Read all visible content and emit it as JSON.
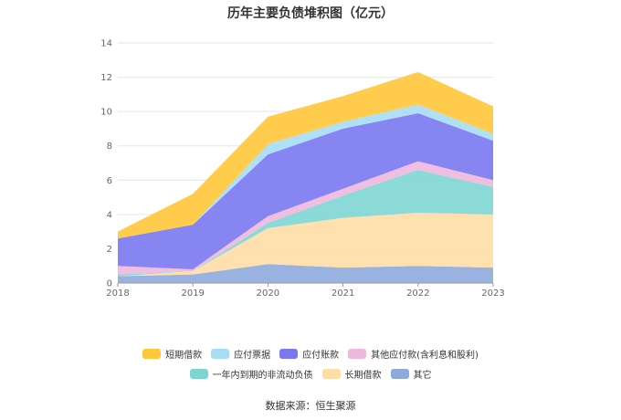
{
  "colors": {
    "short_term_borrowing": "#FFC73A",
    "notes_payable": "#A6DDF5",
    "accounts_payable": "#7A78F0",
    "other_payables": "#EEB7DD",
    "current_portion_noncurrent": "#7ED6D4",
    "long_term_borrowing": "#FFDDA5",
    "other": "#8EAADC",
    "grid": "#E6E6E6",
    "axis_label": "#666666",
    "title": "#333333"
  },
  "footer": {
    "source_label": "数据来源：恒生聚源"
  },
  "chart_data": {
    "type": "area",
    "stacked": true,
    "title": "历年主要负债堆积图（亿元）",
    "xlabel": "",
    "ylabel": "",
    "x": [
      "2018",
      "2019",
      "2020",
      "2021",
      "2022",
      "2023"
    ],
    "ylim": [
      0,
      14
    ],
    "yticks": [
      0,
      2,
      4,
      6,
      8,
      10,
      12,
      14
    ],
    "grid": true,
    "legend_position": "bottom",
    "series": [
      {
        "name": "其它",
        "key": "other",
        "values": [
          0.4,
          0.5,
          1.1,
          0.9,
          1.0,
          0.9
        ]
      },
      {
        "name": "长期借款",
        "key": "long_term_borrowing",
        "values": [
          0.0,
          0.2,
          2.1,
          2.9,
          3.1,
          3.1
        ]
      },
      {
        "name": "一年内到期的非流动负债",
        "key": "current_portion_noncurrent",
        "values": [
          0.1,
          0.0,
          0.3,
          1.3,
          2.5,
          1.6
        ]
      },
      {
        "name": "其他应付款(含利息和股利)",
        "key": "other_payables",
        "values": [
          0.5,
          0.1,
          0.4,
          0.4,
          0.5,
          0.4
        ]
      },
      {
        "name": "应付账款",
        "key": "accounts_payable",
        "values": [
          1.6,
          2.6,
          3.6,
          3.5,
          2.8,
          2.3
        ]
      },
      {
        "name": "应付票据",
        "key": "notes_payable",
        "values": [
          0.0,
          0.0,
          0.6,
          0.4,
          0.5,
          0.4
        ]
      },
      {
        "name": "短期借款",
        "key": "short_term_borrowing",
        "values": [
          0.4,
          1.8,
          1.6,
          1.5,
          1.9,
          1.6
        ]
      }
    ],
    "legend_rows": [
      [
        "short_term_borrowing",
        "notes_payable",
        "accounts_payable",
        "other_payables"
      ],
      [
        "current_portion_noncurrent",
        "long_term_borrowing",
        "other"
      ]
    ]
  }
}
